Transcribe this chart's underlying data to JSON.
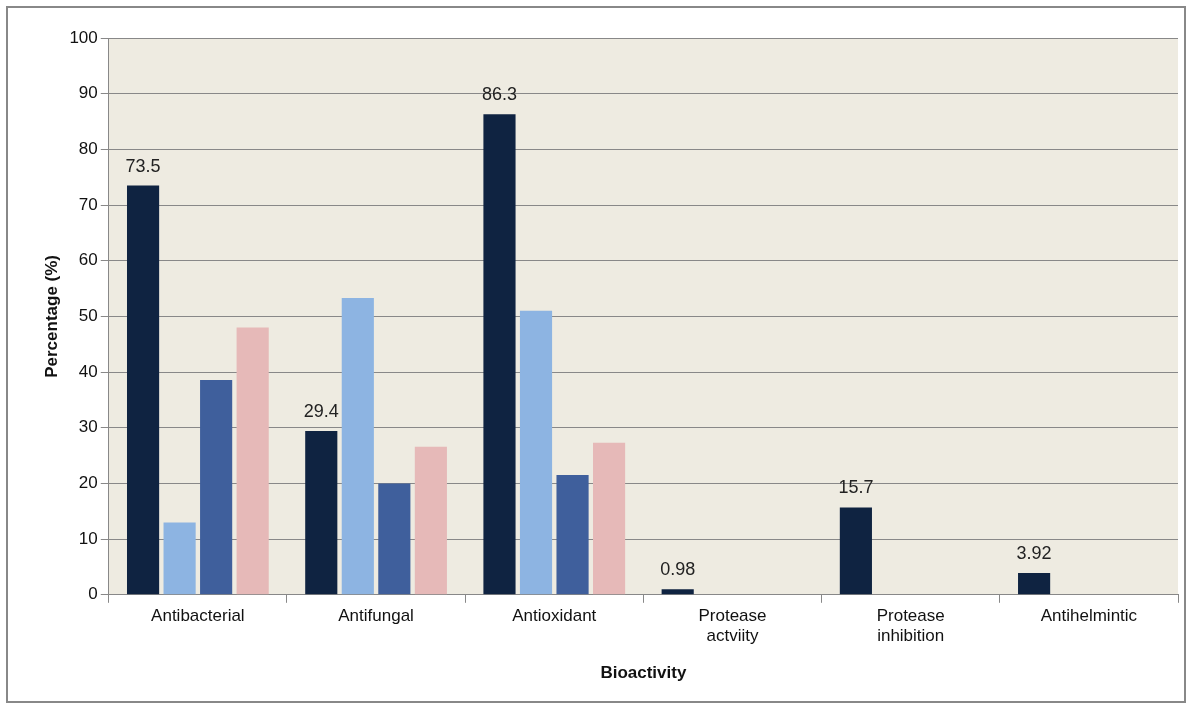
{
  "chart_data": {
    "type": "bar",
    "xlabel": "Bioactivity",
    "ylabel": "Percentage (%)",
    "categories": [
      "Antibacterial",
      "Antifungal",
      "Antioxidant",
      "Protease actviity",
      "Protease inhibition",
      "Antihelmintic"
    ],
    "series": [
      {
        "color": "#0f2341",
        "values": [
          73.5,
          29.4,
          86.3,
          0.98,
          15.7,
          3.92
        ],
        "value_labels": [
          "73.5",
          "29.4",
          "86.3",
          "0.98",
          "15.7",
          "3.92"
        ]
      },
      {
        "color": "#8db4e2",
        "values": [
          13,
          53.3,
          51,
          null,
          null,
          null
        ]
      },
      {
        "color": "#3f5f9c",
        "values": [
          38.6,
          20,
          21.5,
          null,
          null,
          null
        ]
      },
      {
        "color": "#e6b9b8",
        "values": [
          48,
          26.6,
          27.3,
          null,
          null,
          null
        ]
      }
    ],
    "ylim": [
      0,
      100
    ],
    "yticks": [
      0,
      10,
      20,
      30,
      40,
      50,
      60,
      70,
      80,
      90,
      100
    ],
    "grid": "y",
    "legend": false
  }
}
